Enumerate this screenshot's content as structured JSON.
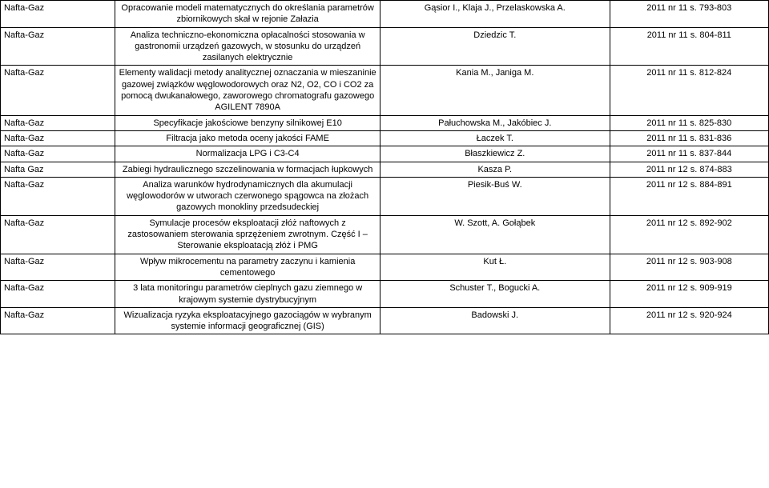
{
  "rows": [
    {
      "journal": "Nafta-Gaz",
      "title": "Opracowanie modeli matematycznych do określania parametrów zbiornikowych skał w rejonie Załazia",
      "authors": "Gąsior I., Klaja J., Przelaskowska A.",
      "ref": "2011 nr 11 s. 793-803"
    },
    {
      "journal": "Nafta-Gaz",
      "title": "Analiza techniczno-ekonomiczna opłacalności stosowania w gastronomii urządzeń gazowych, w stosunku do urządzeń zasilanych elektrycznie",
      "authors": "Dziedzic T.",
      "ref": "2011 nr 11 s. 804-811"
    },
    {
      "journal": "Nafta-Gaz",
      "title": "Elementy walidacji metody analitycznej oznaczania w mieszaninie gazowej związków węglowodorowych oraz N2, O2, CO i CO2 za pomocą dwukanałowego, zaworowego chromatografu gazowego AGILENT 7890A",
      "authors": "Kania M., Janiga M.",
      "ref": "2011 nr 11 s. 812-824"
    },
    {
      "journal": "Nafta-Gaz",
      "title": "Specyfikacje jakościowe benzyny silnikowej E10",
      "authors": "Pałuchowska M., Jakóbiec J.",
      "ref": "2011 nr 11 s. 825-830"
    },
    {
      "journal": "Nafta-Gaz",
      "title": "Filtracja jako metoda oceny jakości FAME",
      "authors": "Łaczek T.",
      "ref": "2011 nr 11 s. 831-836"
    },
    {
      "journal": "Nafta-Gaz",
      "title": "Normalizacja LPG i C3-C4",
      "authors": "Błaszkiewicz Z.",
      "ref": "2011 nr 11 s. 837-844"
    },
    {
      "journal": "Nafta Gaz",
      "title": "Zabiegi hydraulicznego szczelinowania w formacjach łupkowych",
      "authors": "Kasza P.",
      "ref": "2011 nr 12 s. 874-883"
    },
    {
      "journal": "Nafta-Gaz",
      "title": "Analiza warunków hydrodynamicznych dla akumulacji węglowodorów w utworach czerwonego spągowca na złożach gazowych monokliny przedsudeckiej",
      "authors": "Piesik-Buś W.",
      "ref": "2011 nr 12 s. 884-891"
    },
    {
      "journal": "Nafta-Gaz",
      "title": "Symulacje procesów eksploatacji złóż naftowych z zastosowaniem sterowania sprzężeniem zwrotnym. Część I – Sterowanie eksploatacją złóż i PMG",
      "authors": "W. Szott, A. Gołąbek",
      "ref": "2011 nr 12 s. 892-902"
    },
    {
      "journal": "Nafta-Gaz",
      "title": "Wpływ mikrocementu na parametry zaczynu i kamienia cementowego",
      "authors": "Kut Ł.",
      "ref": "2011 nr 12 s. 903-908"
    },
    {
      "journal": "Nafta-Gaz",
      "title": "3 lata monitoringu parametrów cieplnych gazu ziemnego w krajowym systemie dystrybucyjnym",
      "authors": "Schuster T., Bogucki A.",
      "ref": "2011 nr 12 s. 909-919"
    },
    {
      "journal": "Nafta-Gaz",
      "title": "Wizualizacja ryzyka eksploatacyjnego gazociągów w wybranym systemie informacji geograficznej (GIS)",
      "authors": "Badowski J.",
      "ref": "2011 nr 12 s. 920-924"
    }
  ]
}
